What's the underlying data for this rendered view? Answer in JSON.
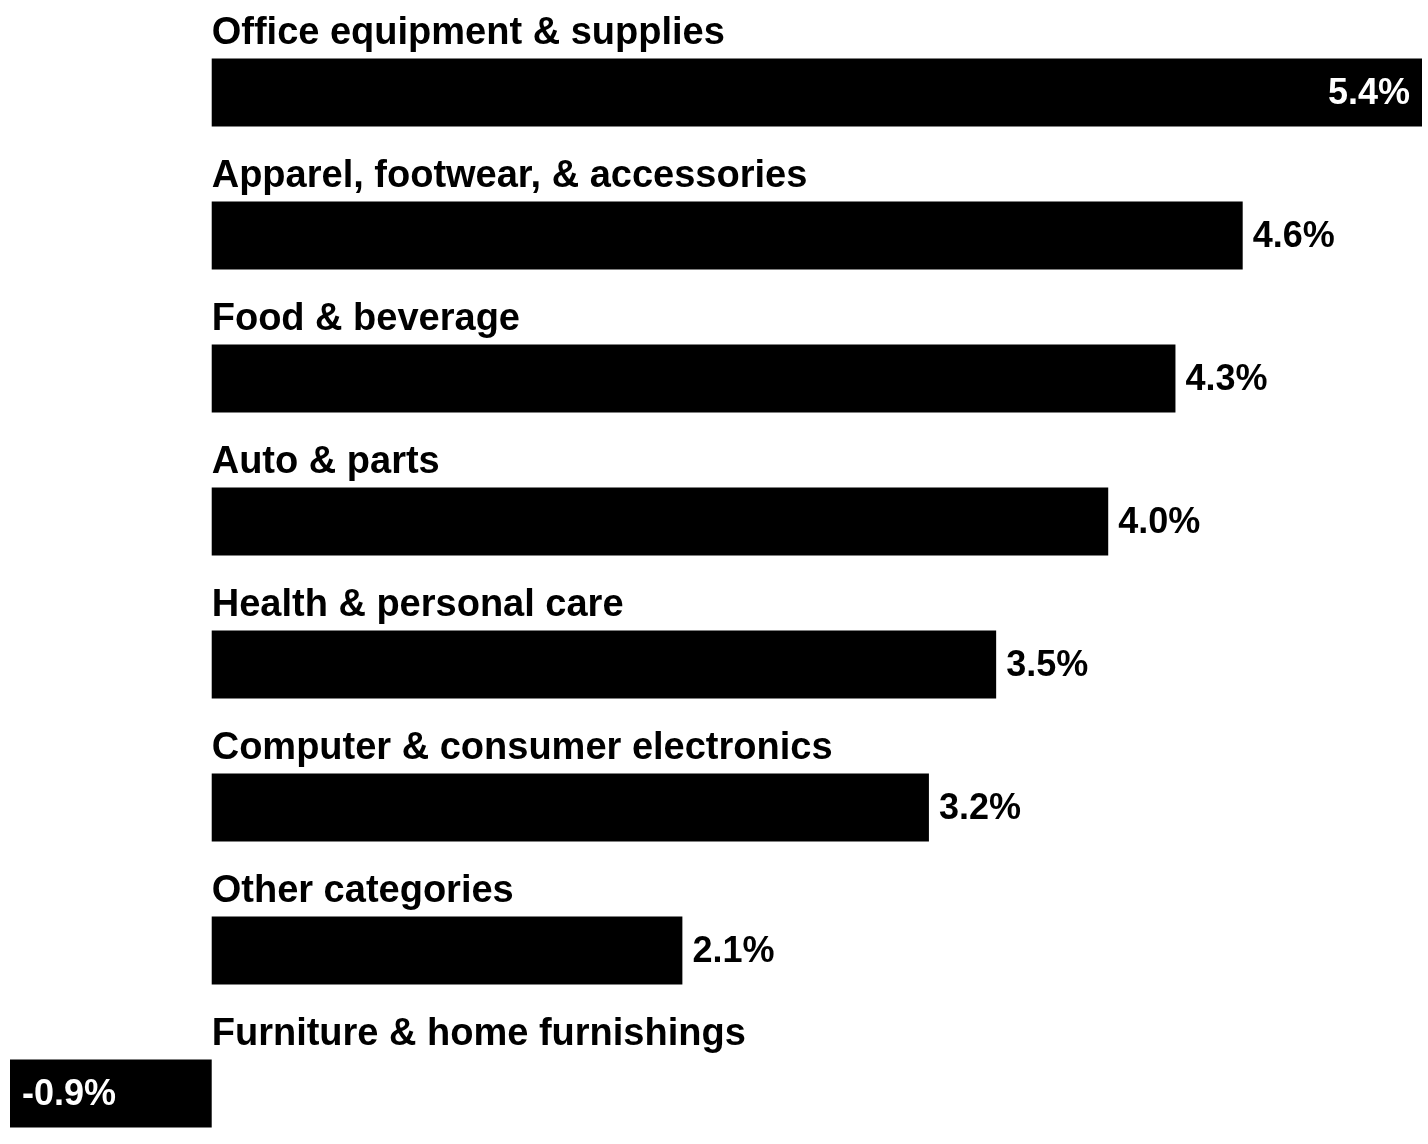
{
  "chart_data": {
    "type": "bar",
    "orientation": "horizontal",
    "categories": [
      "Office equipment & supplies",
      "Apparel, footwear, & accessories",
      "Food & beverage",
      "Auto & parts",
      "Health & personal care",
      "Computer & consumer electronics",
      "Other categories",
      "Furniture & home furnishings"
    ],
    "values": [
      5.4,
      4.6,
      4.3,
      4.0,
      3.5,
      3.2,
      2.1,
      -0.9
    ],
    "value_labels": [
      "5.4%",
      "4.6%",
      "4.3%",
      "4.0%",
      "3.5%",
      "3.2%",
      "2.1%",
      "-0.9%"
    ],
    "color": "#000000",
    "xlim": [
      -0.9,
      5.4
    ],
    "grid": false
  }
}
